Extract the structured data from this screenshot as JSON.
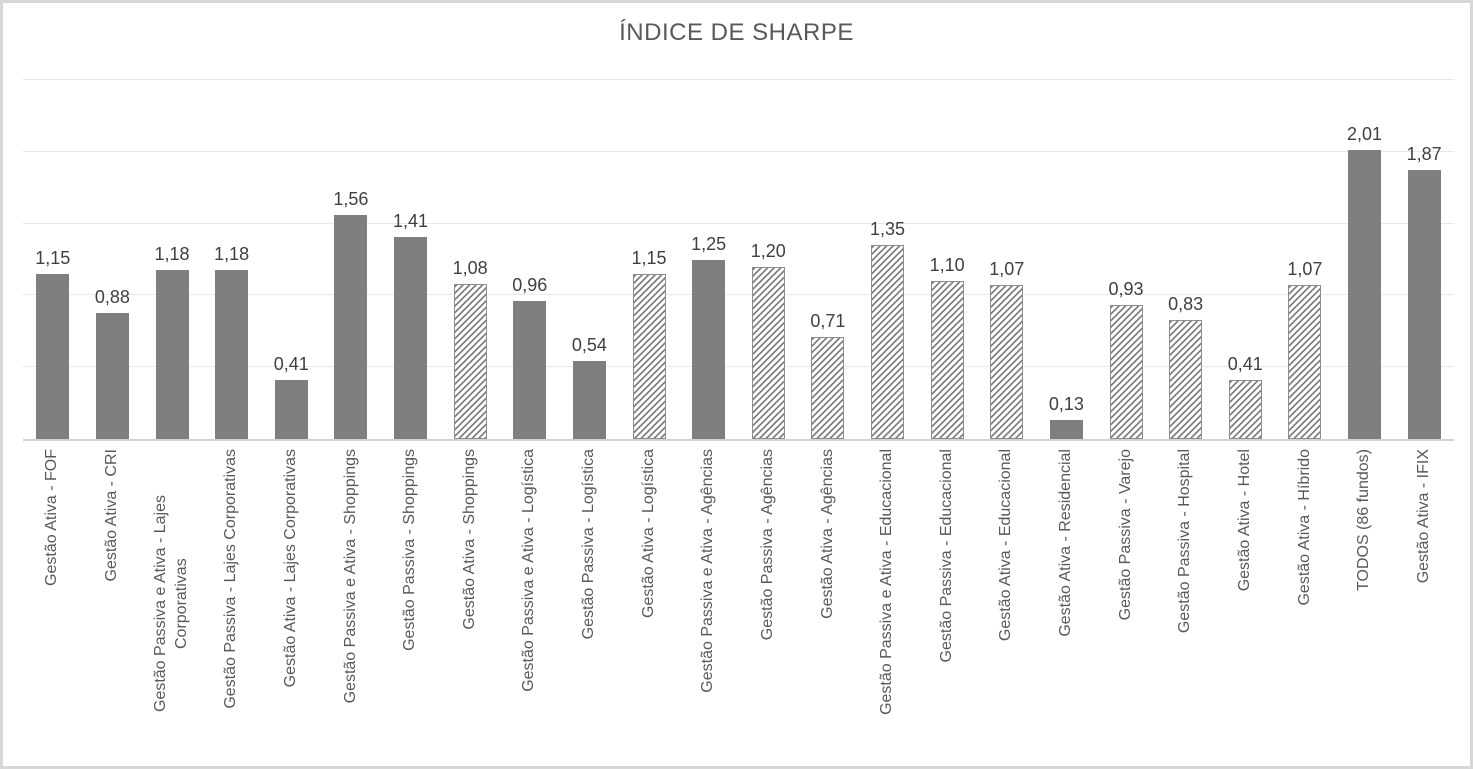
{
  "chart_data": {
    "type": "bar",
    "title": "ÍNDICE DE SHARPE",
    "categories": [
      "Gestão Ativa - FOF",
      "Gestão Ativa - CRI",
      "Gestão Passiva e Ativa - Lajes Corporativas",
      "Gestão Passiva - Lajes Corporativas",
      "Gestão Ativa - Lajes Corporativas",
      "Gestão Passiva e Ativa - Shoppings",
      "Gestão Passiva - Shoppings",
      "Gestão Ativa - Shoppings",
      "Gestão Passiva e Ativa - Logística",
      "Gestão Passiva - Logística",
      "Gestão Ativa - Logística",
      "Gestão Passiva e Ativa - Agências",
      "Gestão Passiva - Agências",
      "Gestão Ativa - Agências",
      "Gestão Passiva e Ativa - Educacional",
      "Gestão Passiva - Educacional",
      "Gestão Ativa - Educacional",
      "Gestão Ativa - Residencial",
      "Gestão Passiva - Varejo",
      "Gestão Passiva - Hospital",
      "Gestão Ativa - Hotel",
      "Gestão Ativa - Híbrido",
      "TODOS (86 fundos)",
      "Gestão Ativa - IFIX"
    ],
    "values": [
      1.15,
      0.88,
      1.18,
      1.18,
      0.41,
      1.56,
      1.41,
      1.08,
      0.96,
      0.54,
      1.15,
      1.25,
      1.2,
      0.71,
      1.35,
      1.1,
      1.07,
      0.13,
      0.93,
      0.83,
      0.41,
      1.07,
      2.01,
      1.87
    ],
    "value_labels": [
      "1,15",
      "0,88",
      "1,18",
      "1,18",
      "0,41",
      "1,56",
      "1,41",
      "1,08",
      "0,96",
      "0,54",
      "1,15",
      "1,25",
      "1,20",
      "0,71",
      "1,35",
      "1,10",
      "1,07",
      "0,13",
      "0,93",
      "0,83",
      "0,41",
      "1,07",
      "2,01",
      "1,87"
    ],
    "bar_styles": [
      "solid",
      "solid",
      "solid",
      "solid",
      "solid",
      "solid",
      "solid",
      "hatched",
      "solid",
      "solid",
      "hatched",
      "solid",
      "hatched",
      "hatched",
      "hatched",
      "hatched",
      "hatched",
      "solid",
      "hatched",
      "hatched",
      "hatched",
      "hatched",
      "solid",
      "solid"
    ],
    "xlabel": "",
    "ylabel": "",
    "ylim": [
      0,
      2.5
    ],
    "ytick_interval": 0.5,
    "y_tick_labels_visible": false,
    "grid": true,
    "legend": "none",
    "colors": {
      "bar_solid": "#7f7f7f",
      "bar_hatch_stripe": "#828282",
      "bar_hatch_background": "#ffffff",
      "title_text": "#595959",
      "value_label_text": "#404040",
      "axis_label_text": "#595959",
      "gridline": "#e9e9e9",
      "axis_line": "#d2d2d2",
      "frame_border": "#d7d7d7"
    }
  }
}
